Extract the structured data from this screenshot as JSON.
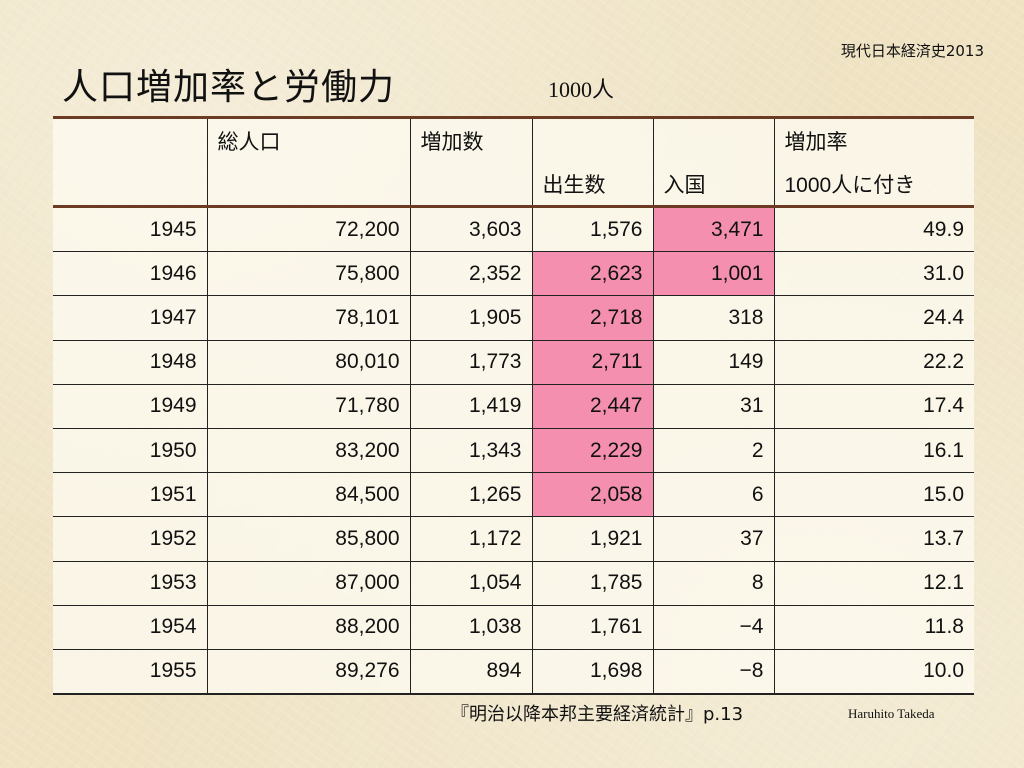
{
  "header": {
    "course": "現代日本経済史2013",
    "title": "人口増加率と労働力",
    "unit": "1000人"
  },
  "table": {
    "header_row1": [
      "",
      "総人口",
      "増加数",
      "",
      "",
      "増加率"
    ],
    "header_row2": [
      "",
      "",
      "",
      "出生数",
      "入国",
      "1000人に付き"
    ],
    "rows": [
      [
        "1945",
        "72,200",
        "3,603",
        "1,576",
        "3,471",
        "49.9"
      ],
      [
        "1946",
        "75,800",
        "2,352",
        "2,623",
        "1,001",
        "31.0"
      ],
      [
        "1947",
        "78,101",
        "1,905",
        "2,718",
        "318",
        "24.4"
      ],
      [
        "1948",
        "80,010",
        "1,773",
        "2,711",
        "149",
        "22.2"
      ],
      [
        "1949",
        "71,780",
        "1,419",
        "2,447",
        "31",
        "17.4"
      ],
      [
        "1950",
        "83,200",
        "1,343",
        "2,229",
        "2",
        "16.1"
      ],
      [
        "1951",
        "84,500",
        "1,265",
        "2,058",
        "6",
        "15.0"
      ],
      [
        "1952",
        "85,800",
        "1,172",
        "1,921",
        "37",
        "13.7"
      ],
      [
        "1953",
        "87,000",
        "1,054",
        "1,785",
        "8",
        "12.1"
      ],
      [
        "1954",
        "88,200",
        "1,038",
        "1,761",
        "−4",
        "11.8"
      ],
      [
        "1955",
        "89,276",
        "894",
        "1,698",
        "−8",
        "10.0"
      ]
    ],
    "highlight_color": "#f58fb0"
  },
  "footer": {
    "source": "『明治以降本邦主要経済統計』p.13",
    "author": "Haruhito Takeda"
  }
}
